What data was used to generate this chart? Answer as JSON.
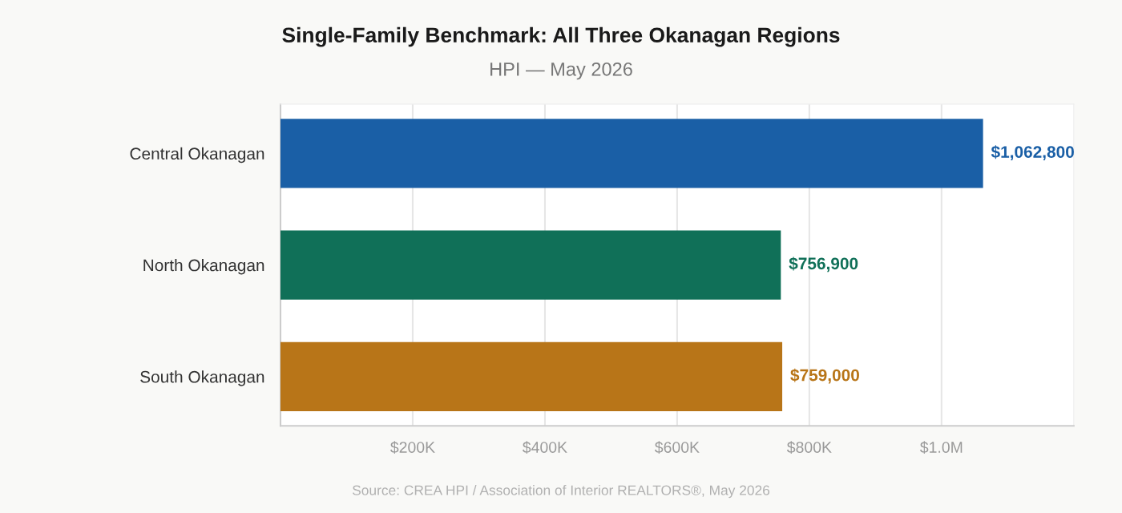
{
  "chart_data": {
    "type": "bar",
    "orientation": "horizontal",
    "title": "Single-Family Benchmark: All Three Okanagan Regions",
    "subtitle": "HPI — May 2026",
    "categories": [
      "Central Okanagan",
      "North Okanagan",
      "South Okanagan"
    ],
    "values": [
      1062800,
      756900,
      759000
    ],
    "colors": [
      "#1a5fa6",
      "#107058",
      "#b87518"
    ],
    "value_labels": [
      "$1,062,800",
      "$756,900",
      "$759,000"
    ],
    "xlim": [
      0,
      1200000
    ],
    "xticks": [
      {
        "value": 200000,
        "label": "$200K"
      },
      {
        "value": 400000,
        "label": "$400K"
      },
      {
        "value": 600000,
        "label": "$600K"
      },
      {
        "value": 800000,
        "label": "$800K"
      },
      {
        "value": 1000000,
        "label": "$1.0M"
      }
    ],
    "grid": "x",
    "annotations": [
      "Source: CREA HPI / Association of Interior REALTORS®, May 2026"
    ]
  }
}
